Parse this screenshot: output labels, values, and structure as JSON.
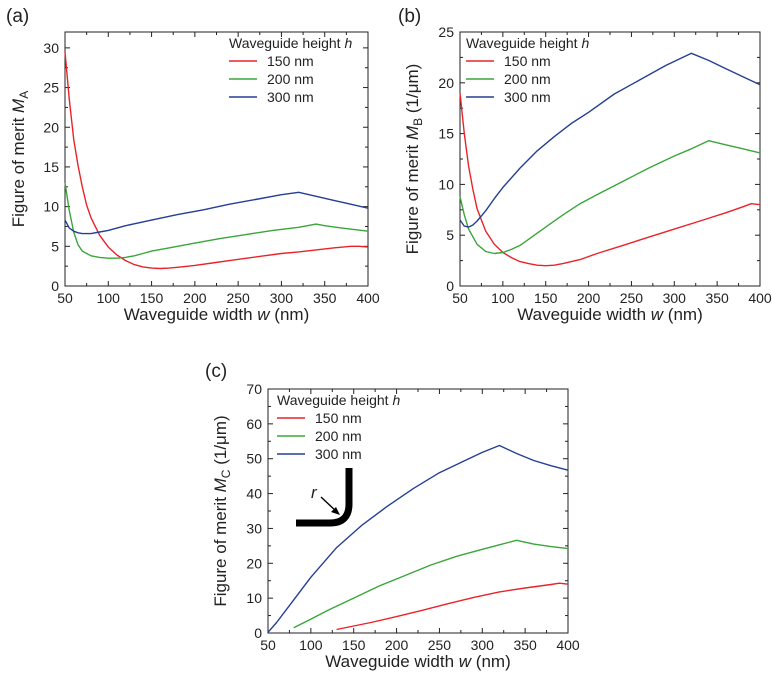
{
  "chart_data": [
    {
      "panel_label": "(a)",
      "type": "line",
      "xlabel_text": "Waveguide width ",
      "xlabel_var": "w",
      "xlabel_unit": " (nm)",
      "ylabel_text": "Figure of merit ",
      "ylabel_var": "M",
      "ylabel_sub": "A",
      "ylabel_unit": "",
      "xlim": [
        50,
        400
      ],
      "ylim": [
        0,
        32
      ],
      "xticks": [
        "50",
        "100",
        "150",
        "200",
        "250",
        "300",
        "350",
        "400"
      ],
      "yticks": [
        "0",
        "5",
        "10",
        "15",
        "20",
        "25",
        "30"
      ],
      "legend_title_text": "Waveguide height ",
      "legend_title_var": "h",
      "series": [
        {
          "name": "150 nm",
          "color": "#e8242a",
          "x": [
            50,
            55,
            60,
            65,
            70,
            75,
            80,
            90,
            100,
            110,
            120,
            130,
            140,
            150,
            160,
            170,
            180,
            200,
            220,
            240,
            260,
            280,
            300,
            320,
            340,
            360,
            380,
            390,
            400
          ],
          "y": [
            29.5,
            23.5,
            18.5,
            15.2,
            12.5,
            10.2,
            8.6,
            6.4,
            4.9,
            3.9,
            3.2,
            2.7,
            2.4,
            2.25,
            2.2,
            2.25,
            2.35,
            2.6,
            2.9,
            3.2,
            3.5,
            3.8,
            4.1,
            4.3,
            4.55,
            4.8,
            5.0,
            5.0,
            4.9
          ]
        },
        {
          "name": "200 nm",
          "color": "#3aa63a",
          "x": [
            50,
            55,
            60,
            65,
            70,
            80,
            90,
            100,
            110,
            120,
            130,
            140,
            150,
            170,
            200,
            230,
            260,
            290,
            320,
            330,
            340,
            350,
            370,
            400
          ],
          "y": [
            13.0,
            9.5,
            6.8,
            5.2,
            4.4,
            3.8,
            3.6,
            3.5,
            3.5,
            3.6,
            3.8,
            4.1,
            4.4,
            4.8,
            5.4,
            6.0,
            6.5,
            7.0,
            7.4,
            7.6,
            7.8,
            7.6,
            7.3,
            6.9
          ]
        },
        {
          "name": "300 nm",
          "color": "#253f94",
          "x": [
            50,
            55,
            60,
            65,
            70,
            75,
            80,
            90,
            100,
            120,
            150,
            180,
            210,
            240,
            270,
            300,
            320,
            340,
            360,
            380,
            400
          ],
          "y": [
            8.3,
            7.3,
            6.9,
            6.7,
            6.6,
            6.6,
            6.6,
            6.8,
            7.0,
            7.6,
            8.3,
            9.0,
            9.6,
            10.3,
            10.9,
            11.5,
            11.8,
            11.3,
            10.8,
            10.3,
            9.8
          ]
        }
      ]
    },
    {
      "panel_label": "(b)",
      "type": "line",
      "xlabel_text": "Waveguide width ",
      "xlabel_var": "w",
      "xlabel_unit": " (nm)",
      "ylabel_text": "Figure of merit ",
      "ylabel_var": "M",
      "ylabel_sub": "B",
      "ylabel_unit": " (1/μm)",
      "xlim": [
        50,
        400
      ],
      "ylim": [
        0,
        25
      ],
      "xticks": [
        "50",
        "100",
        "150",
        "200",
        "250",
        "300",
        "350",
        "400"
      ],
      "yticks": [
        "0",
        "5",
        "10",
        "15",
        "20",
        "25"
      ],
      "legend_title_text": "Waveguide height ",
      "legend_title_var": "h",
      "series": [
        {
          "name": "150 nm",
          "color": "#e8242a",
          "x": [
            50,
            55,
            60,
            65,
            70,
            80,
            90,
            100,
            110,
            120,
            130,
            140,
            150,
            160,
            170,
            190,
            210,
            240,
            270,
            300,
            330,
            360,
            380,
            390,
            400
          ],
          "y": [
            19.0,
            15.0,
            11.8,
            9.5,
            7.6,
            5.4,
            4.1,
            3.3,
            2.8,
            2.4,
            2.2,
            2.05,
            2.0,
            2.05,
            2.2,
            2.6,
            3.2,
            4.0,
            4.8,
            5.6,
            6.4,
            7.2,
            7.8,
            8.1,
            8.0
          ]
        },
        {
          "name": "200 nm",
          "color": "#3aa63a",
          "x": [
            50,
            55,
            60,
            70,
            80,
            90,
            100,
            110,
            120,
            130,
            150,
            170,
            190,
            210,
            240,
            270,
            300,
            320,
            340,
            360,
            380,
            400
          ],
          "y": [
            8.8,
            7.0,
            5.6,
            4.1,
            3.4,
            3.2,
            3.3,
            3.6,
            4.0,
            4.6,
            5.8,
            7.0,
            8.1,
            9.0,
            10.3,
            11.6,
            12.8,
            13.5,
            14.3,
            13.9,
            13.5,
            13.1
          ]
        },
        {
          "name": "300 nm",
          "color": "#253f94",
          "x": [
            50,
            55,
            60,
            65,
            70,
            80,
            90,
            100,
            120,
            140,
            160,
            180,
            200,
            230,
            260,
            290,
            320,
            340,
            360,
            380,
            400
          ],
          "y": [
            6.5,
            5.9,
            5.8,
            6.0,
            6.4,
            7.4,
            8.6,
            9.7,
            11.6,
            13.3,
            14.7,
            16.0,
            17.1,
            18.9,
            20.3,
            21.7,
            22.9,
            22.2,
            21.4,
            20.6,
            19.8
          ]
        }
      ]
    },
    {
      "panel_label": "(c)",
      "type": "line",
      "xlabel_text": "Waveguide width ",
      "xlabel_var": "w",
      "xlabel_unit": " (nm)",
      "ylabel_text": "Figure of merit ",
      "ylabel_var": "M",
      "ylabel_sub": "C",
      "ylabel_unit": " (1/μm)",
      "xlim": [
        50,
        400
      ],
      "ylim": [
        0,
        70
      ],
      "xticks": [
        "50",
        "100",
        "150",
        "200",
        "250",
        "300",
        "350",
        "400"
      ],
      "yticks": [
        "0",
        "10",
        "20",
        "30",
        "40",
        "50",
        "60",
        "70"
      ],
      "legend_title_text": "Waveguide height ",
      "legend_title_var": "h",
      "inset_label": "r",
      "series": [
        {
          "name": "150 nm",
          "color": "#e8242a",
          "x": [
            130,
            150,
            170,
            200,
            230,
            260,
            290,
            320,
            350,
            380,
            390,
            400
          ],
          "y": [
            1.0,
            2.0,
            3.0,
            4.7,
            6.5,
            8.4,
            10.2,
            11.8,
            12.9,
            13.9,
            14.3,
            14.0
          ]
        },
        {
          "name": "200 nm",
          "color": "#3aa63a",
          "x": [
            80,
            100,
            120,
            150,
            180,
            210,
            240,
            270,
            300,
            320,
            340,
            360,
            380,
            400
          ],
          "y": [
            1.5,
            4.0,
            6.5,
            10.0,
            13.5,
            16.5,
            19.5,
            22.0,
            24.0,
            25.3,
            26.6,
            25.5,
            24.8,
            24.2
          ]
        },
        {
          "name": "300 nm",
          "color": "#253f94",
          "x": [
            50,
            60,
            80,
            100,
            130,
            160,
            190,
            220,
            250,
            280,
            300,
            320,
            340,
            360,
            380,
            400
          ],
          "y": [
            0.2,
            3.0,
            9.5,
            16.0,
            24.5,
            31.0,
            36.5,
            41.5,
            46.0,
            49.5,
            51.8,
            53.8,
            51.5,
            49.5,
            48.0,
            46.7
          ]
        }
      ]
    }
  ]
}
